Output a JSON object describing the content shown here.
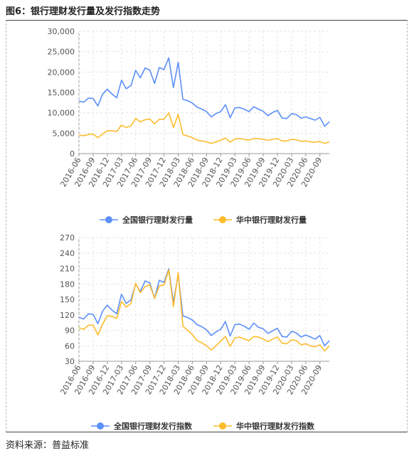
{
  "figure": {
    "title": "图6：银行理财发行量及发行指数走势",
    "source": "资料来源：普益标准"
  },
  "chart_data": [
    {
      "type": "line",
      "x_tick_labels": [
        "2016-06",
        "2016-09",
        "2016-12",
        "2017-03",
        "2017-06",
        "2017-09",
        "2017-12",
        "2018-03",
        "2018-06",
        "2018-09",
        "2018-12",
        "2019-03",
        "2019-06",
        "2019-09",
        "2019-12",
        "2020-03",
        "2020-06",
        "2020-09"
      ],
      "y_tick_labels": [
        "0",
        "5,000",
        "10,000",
        "15,000",
        "20,000",
        "25,000",
        "30,000"
      ],
      "ylim": [
        0,
        30000
      ],
      "grid": true,
      "legend_position": "bottom",
      "series": [
        {
          "name": "全国银行理财发行量",
          "color": "#5b8ff9",
          "values": [
            12900,
            12600,
            13600,
            13500,
            11700,
            14600,
            15800,
            14600,
            13700,
            18000,
            15900,
            16700,
            20400,
            18600,
            21000,
            20500,
            17200,
            21100,
            20600,
            23500,
            16200,
            22400,
            13300,
            13000,
            12400,
            11400,
            10900,
            10300,
            9000,
            9800,
            10300,
            12000,
            8800,
            11200,
            11300,
            10900,
            10300,
            11500,
            10900,
            10400,
            9300,
            10100,
            10600,
            8700,
            8600,
            9800,
            9600,
            8700,
            9000,
            8600,
            8200,
            8900,
            6700,
            7800
          ]
        },
        {
          "name": "华中银行理财发行量",
          "color": "#fcbc2b",
          "values": [
            4500,
            4400,
            4700,
            4800,
            3900,
            4800,
            5600,
            5600,
            5400,
            7000,
            6400,
            6800,
            8600,
            7800,
            8300,
            8500,
            7300,
            8400,
            8400,
            10000,
            6400,
            9600,
            4700,
            4300,
            3900,
            3300,
            3100,
            2900,
            2500,
            2900,
            3300,
            3800,
            2800,
            3600,
            3700,
            3500,
            3300,
            3700,
            3700,
            3500,
            3300,
            3500,
            3700,
            3100,
            3100,
            3500,
            3400,
            3000,
            3100,
            2900,
            2800,
            3000,
            2500,
            2900
          ]
        }
      ]
    },
    {
      "type": "line",
      "x_tick_labels": [
        "2016-06",
        "2016-09",
        "2016-12",
        "2017-03",
        "2017-06",
        "2017-09",
        "2017-12",
        "2018-03",
        "2018-06",
        "2018-09",
        "2018-12",
        "2019-03",
        "2019-06",
        "2019-09",
        "2019-12",
        "2020-03",
        "2020-06",
        "2020-09"
      ],
      "y_tick_labels": [
        "30",
        "60",
        "90",
        "120",
        "150",
        "180",
        "210",
        "240",
        "270"
      ],
      "ylim": [
        30,
        270
      ],
      "grid": true,
      "legend_position": "bottom",
      "series": [
        {
          "name": "全国银行理财发行指数",
          "color": "#5b8ff9",
          "values": [
            115,
            112,
            122,
            121,
            103,
            127,
            139,
            129,
            122,
            160,
            142,
            149,
            180,
            165,
            186,
            182,
            152,
            187,
            183,
            209,
            144,
            199,
            118,
            115,
            110,
            101,
            97,
            91,
            80,
            87,
            92,
            107,
            79,
            101,
            102,
            98,
            92,
            104,
            96,
            93,
            84,
            89,
            94,
            78,
            77,
            88,
            85,
            77,
            81,
            77,
            73,
            80,
            60,
            70
          ]
        },
        {
          "name": "华中银行理财发行指数",
          "color": "#fcbc2b",
          "values": [
            95,
            92,
            100,
            100,
            81,
            102,
            118,
            117,
            113,
            146,
            135,
            142,
            181,
            163,
            175,
            178,
            152,
            176,
            178,
            207,
            136,
            202,
            98,
            90,
            82,
            70,
            66,
            60,
            52,
            60,
            69,
            78,
            59,
            75,
            77,
            73,
            70,
            78,
            77,
            73,
            68,
            73,
            77,
            65,
            64,
            72,
            70,
            62,
            64,
            60,
            58,
            62,
            50,
            60
          ]
        }
      ]
    }
  ]
}
